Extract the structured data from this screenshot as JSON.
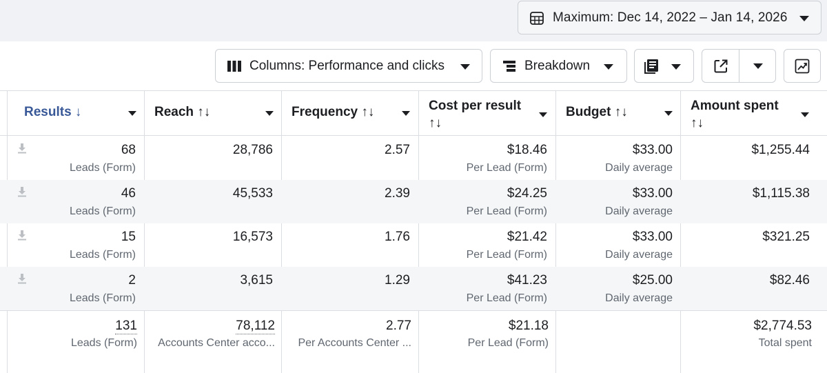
{
  "date_range": {
    "label": "Maximum: Dec 14, 2022 – Jan 14, 2026"
  },
  "toolbar": {
    "columns_label": "Columns: Performance and clicks",
    "breakdown_label": "Breakdown"
  },
  "table": {
    "headers": {
      "results": "Results ↓",
      "reach": "Reach ↑↓",
      "frequency": "Frequency ↑↓",
      "cost_per_result_line1": "Cost per result",
      "cost_per_result_line2": "↑↓",
      "budget": "Budget ↑↓",
      "amount_spent_line1": "Amount spent",
      "amount_spent_line2": "↑↓"
    },
    "rows": [
      {
        "results": "68",
        "results_sub": "Leads (Form)",
        "reach": "28,786",
        "frequency": "2.57",
        "cost": "$18.46",
        "cost_sub": "Per Lead (Form)",
        "budget": "$33.00",
        "budget_sub": "Daily average",
        "spent": "$1,255.44"
      },
      {
        "results": "46",
        "results_sub": "Leads (Form)",
        "reach": "45,533",
        "frequency": "2.39",
        "cost": "$24.25",
        "cost_sub": "Per Lead (Form)",
        "budget": "$33.00",
        "budget_sub": "Daily average",
        "spent": "$1,115.38"
      },
      {
        "results": "15",
        "results_sub": "Leads (Form)",
        "reach": "16,573",
        "frequency": "1.76",
        "cost": "$21.42",
        "cost_sub": "Per Lead (Form)",
        "budget": "$33.00",
        "budget_sub": "Daily average",
        "spent": "$321.25"
      },
      {
        "results": "2",
        "results_sub": "Leads (Form)",
        "reach": "3,615",
        "frequency": "1.29",
        "cost": "$41.23",
        "cost_sub": "Per Lead (Form)",
        "budget": "$25.00",
        "budget_sub": "Daily average",
        "spent": "$82.46"
      }
    ],
    "totals": {
      "results": "131",
      "results_sub": "Leads (Form)",
      "reach": "78,112",
      "reach_sub": "Accounts Center acco...",
      "frequency": "2.77",
      "frequency_sub": "Per Accounts Center ...",
      "cost": "$21.18",
      "cost_sub": "Per Lead (Form)",
      "spent": "$2,774.53",
      "spent_sub": "Total spent"
    }
  },
  "colors": {
    "accent": "#385898",
    "border": "#dadde1",
    "muted": "#606770",
    "alt_row": "#f5f6f7"
  }
}
